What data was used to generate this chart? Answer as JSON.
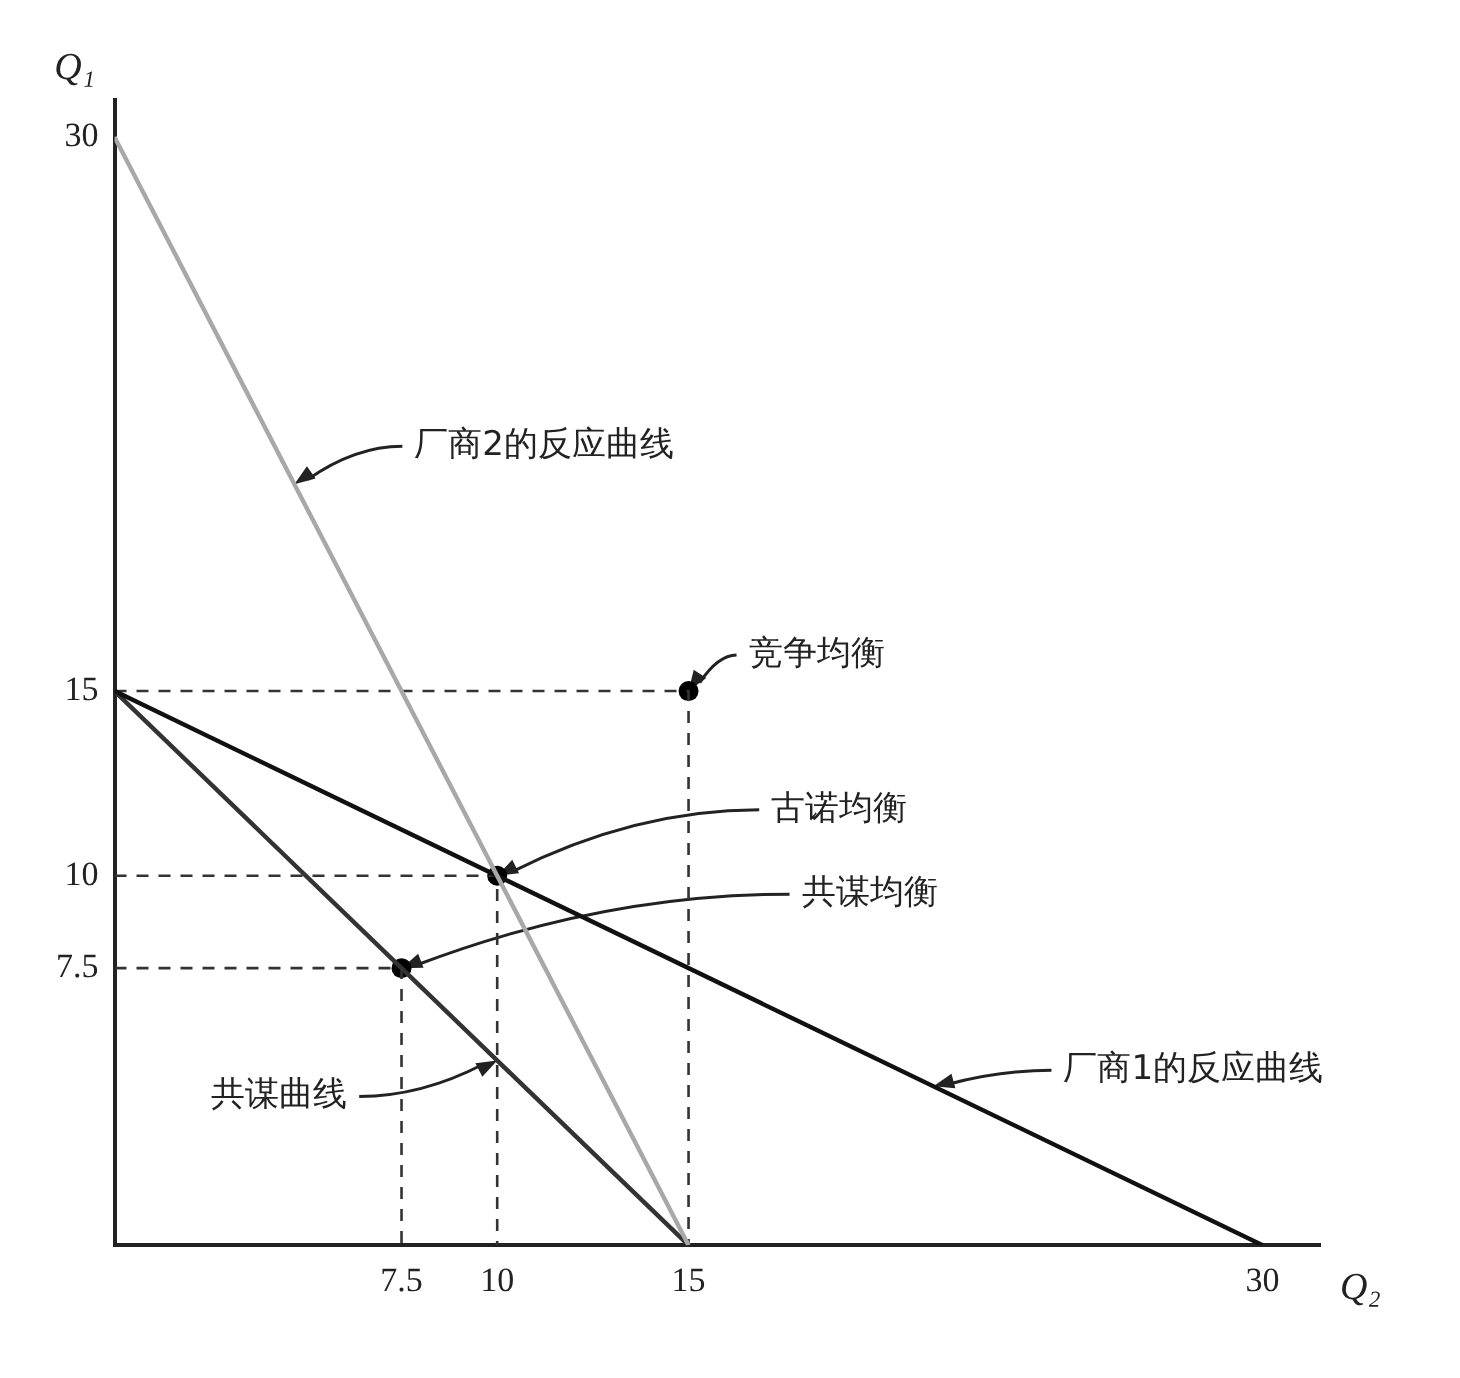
{
  "chart_data": {
    "type": "line",
    "xlabel": "Q₂",
    "ylabel": "Q₁",
    "xlim": [
      0,
      31.5
    ],
    "ylim": [
      0,
      31
    ],
    "xticks": [
      7.5,
      10,
      15,
      30
    ],
    "yticks": [
      7.5,
      10,
      15,
      30
    ],
    "series": [
      {
        "type": "line",
        "color": "#a8a8a8",
        "x": [
          0,
          15
        ],
        "values": [
          30,
          0
        ]
      },
      {
        "type": "line",
        "color": "#111111",
        "x": [
          0,
          30
        ],
        "values": [
          15,
          0
        ]
      },
      {
        "type": "line",
        "color": "#333333",
        "x": [
          0,
          7.5,
          15
        ],
        "values": [
          15,
          7.5,
          0
        ]
      },
      {
        "type": "line",
        "color": "#333333",
        "line_style": "dashed",
        "x": [
          0,
          15,
          15
        ],
        "values": [
          15,
          15,
          0
        ]
      },
      {
        "type": "line",
        "color": "#333333",
        "line_style": "dashed",
        "x": [
          0,
          10,
          10
        ],
        "values": [
          10,
          10,
          0
        ]
      },
      {
        "type": "line",
        "color": "#333333",
        "line_style": "dashed",
        "x": [
          0,
          7.5,
          7.5
        ],
        "values": [
          7.5,
          7.5,
          0
        ]
      },
      {
        "type": "scatter",
        "color": "#000000",
        "marker": "circle",
        "x": [
          15,
          10,
          7.5
        ],
        "values": [
          15,
          10,
          7.5
        ]
      }
    ],
    "annotations": [
      {
        "text": "厂商2的反应曲线",
        "x": 4.7,
        "y": 20.6
      },
      {
        "text": "竞争均衡",
        "x": 15,
        "y": 15
      },
      {
        "text": "古诺均衡",
        "x": 10,
        "y": 10
      },
      {
        "text": "共谋均衡",
        "x": 7.5,
        "y": 7.5
      },
      {
        "text": "厂商1的反应曲线",
        "x": 21.4,
        "y": 4.3
      },
      {
        "text": "共谋曲线",
        "x": 10,
        "y": 5
      }
    ]
  }
}
